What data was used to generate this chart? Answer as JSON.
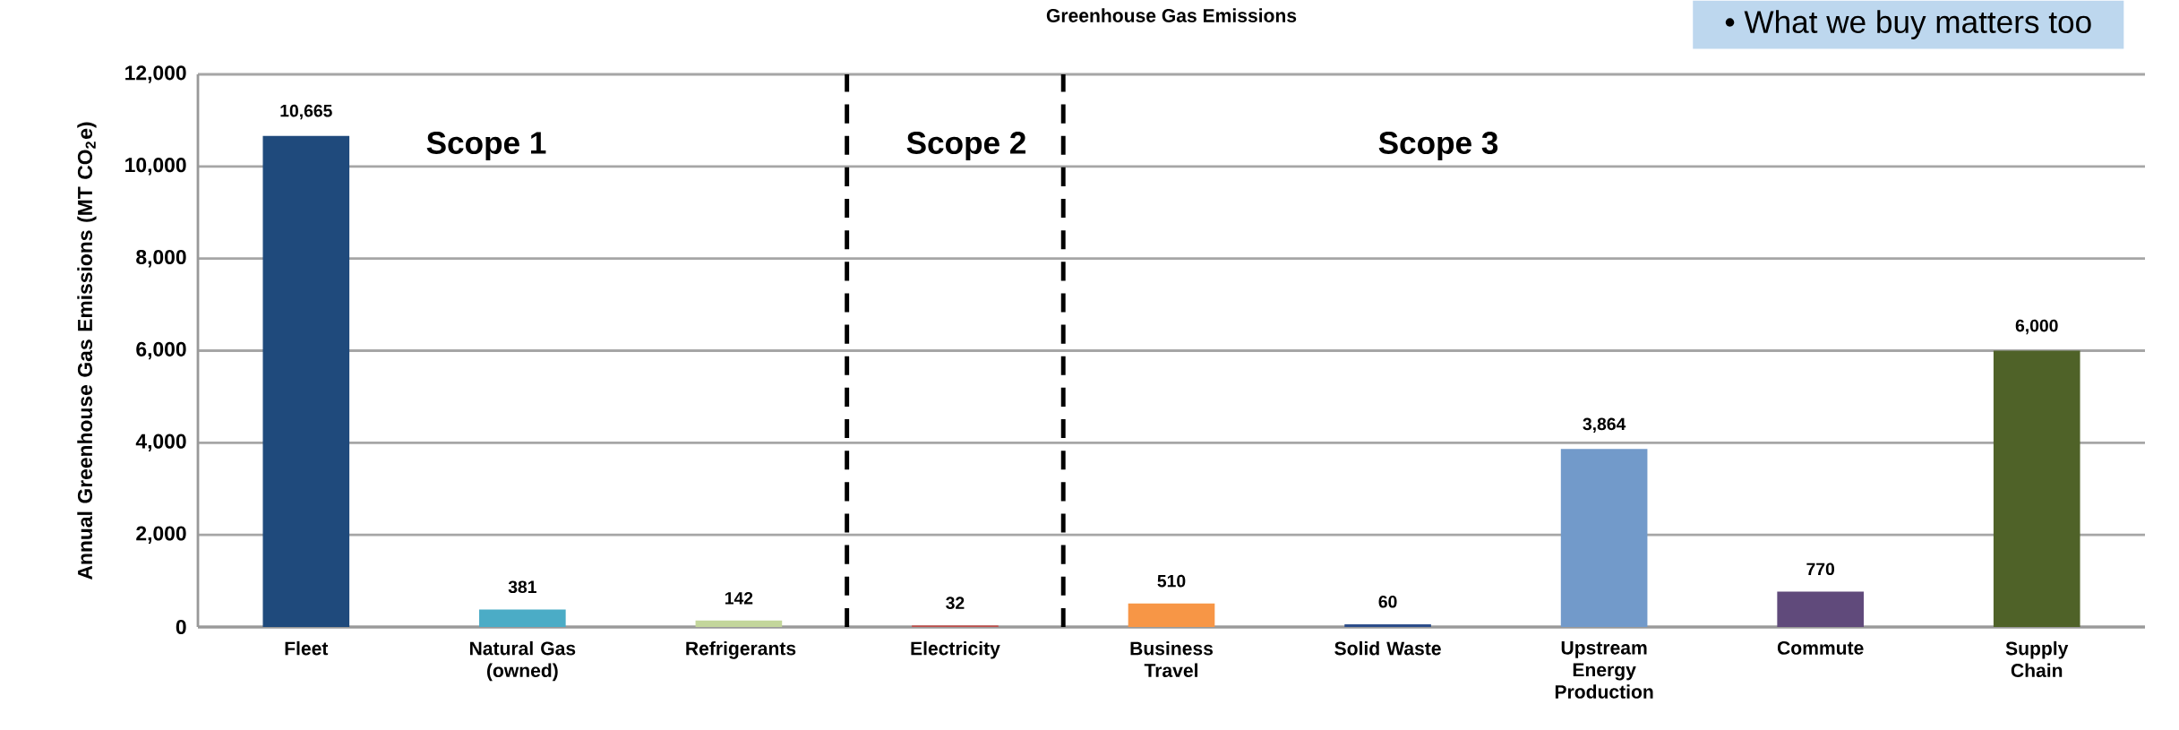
{
  "chart_data": {
    "type": "bar",
    "title": "Greenhouse Gas Emissions",
    "ylabel": "Annual Greenhouse Gas Emissions (MT CO$_{2}$e)",
    "categories": [
      "Fleet",
      "Natural Gas (owned)",
      "Refrigerants",
      "Electricity",
      "Business Travel",
      "Solid Waste",
      "Upstream Energy Production",
      "Commute",
      "Supply Chain"
    ],
    "values": [
      10665,
      381,
      142,
      32,
      510,
      60,
      3864,
      770,
      6000
    ],
    "colors": [
      "#1f4a7c",
      "#4bacc6",
      "#c3d69b",
      "#c0504d",
      "#f79646",
      "#2c4d8a",
      "#729aca",
      "#604a7b",
      "#4f6228"
    ],
    "value_labels": [
      "10,665",
      "381",
      "142",
      "32",
      "510",
      "60",
      "3,864",
      "770",
      "6,000"
    ],
    "ylim": [
      0,
      12000
    ],
    "yticks": [
      {
        "value": 0,
        "label": "0"
      },
      {
        "value": 2000,
        "label": "2,000"
      },
      {
        "value": 4000,
        "label": "4,000"
      },
      {
        "value": 6000,
        "label": "6,000"
      },
      {
        "value": 8000,
        "label": "8,000"
      },
      {
        "value": 10000,
        "label": "10,000"
      },
      {
        "value": 12000,
        "label": "12,000"
      }
    ],
    "grid": "y",
    "annotations": [
      "Scope 1",
      "Scope 2",
      "Scope 3",
      "• What we buy matters too"
    ]
  }
}
